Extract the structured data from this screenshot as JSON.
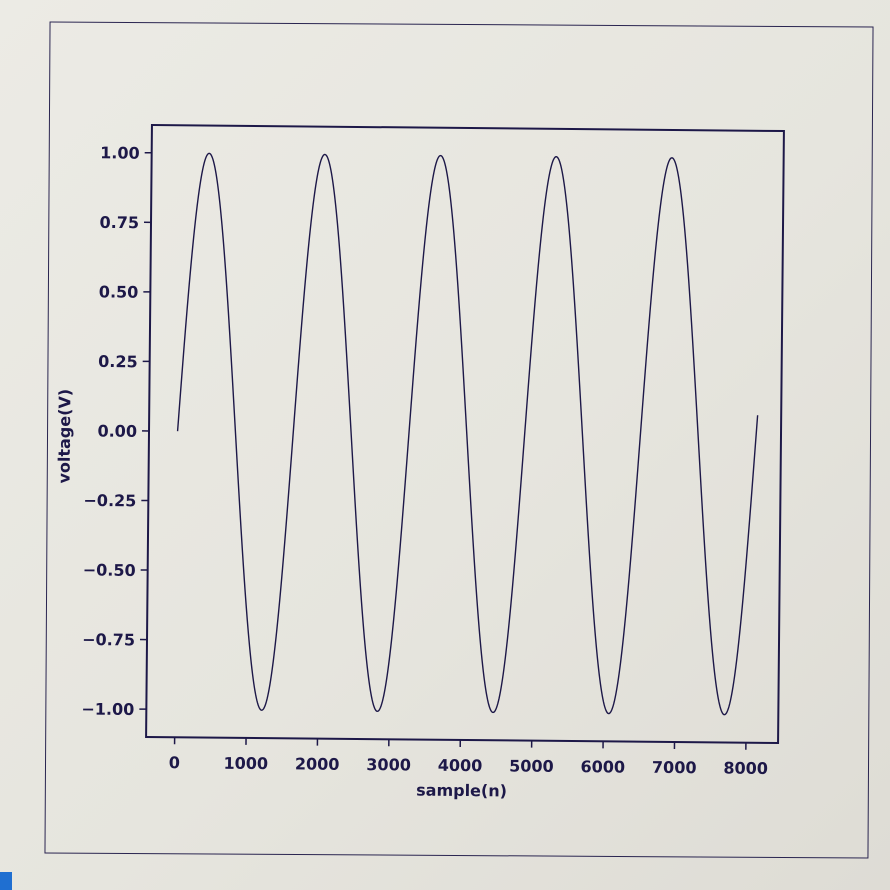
{
  "chart_data": {
    "type": "line",
    "title": "",
    "xlabel": "sample(n)",
    "ylabel": "voltage(V)",
    "xlim": [
      -400,
      8450
    ],
    "ylim": [
      -1.1,
      1.1
    ],
    "xticks": [
      0,
      1000,
      2000,
      3000,
      4000,
      5000,
      6000,
      7000,
      8000
    ],
    "xtick_labels": [
      "0",
      "1000",
      "2000",
      "3000",
      "4000",
      "5000",
      "6000",
      "7000",
      "8000"
    ],
    "yticks": [
      1.0,
      0.75,
      0.5,
      0.25,
      0.0,
      -0.25,
      -0.5,
      -0.75,
      -1.0
    ],
    "ytick_labels": [
      "1.00",
      "0.75",
      "0.50",
      "0.25",
      "0.00",
      "−0.25",
      "−0.50",
      "−0.75",
      "−1.00"
    ],
    "grid": false,
    "line_color": "#1d1848",
    "series": [
      {
        "function": "sine",
        "amplitude": 1.0,
        "period": 1620,
        "x_start": 0,
        "x_end": 8120,
        "x": [
          0,
          405,
          810,
          1215,
          1620,
          2025,
          2430,
          2835,
          3240,
          3645,
          4050,
          4455,
          4860,
          5265,
          5670,
          6075,
          6480,
          6885,
          7290,
          7695,
          8120
        ],
        "values": [
          0.0,
          1.0,
          0.0,
          -1.0,
          0.0,
          1.0,
          0.0,
          -1.0,
          0.0,
          1.0,
          0.0,
          -1.0,
          0.0,
          1.0,
          0.0,
          -1.0,
          0.0,
          1.0,
          0.0,
          -1.0,
          -0.05
        ]
      }
    ]
  }
}
